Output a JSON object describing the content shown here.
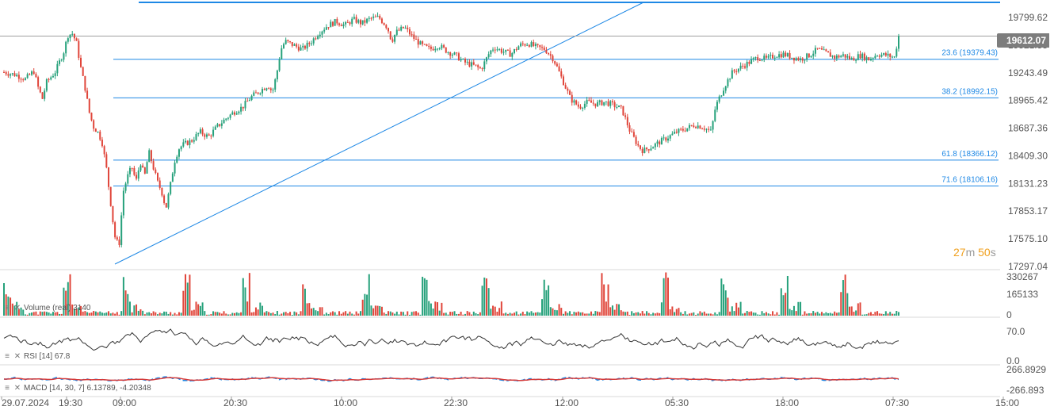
{
  "chart_data": {
    "type": "candlestick",
    "timer": {
      "minutes": "27",
      "m": "m",
      "seconds": "50",
      "s": "s"
    },
    "current_price": "19612.07",
    "y_axis_ticks": [
      "19799.62",
      "19521.55",
      "19243.49",
      "18965.42",
      "18687.36",
      "18409.30",
      "18131.23",
      "17853.17",
      "17575.10",
      "17297.04"
    ],
    "ylim": [
      17297.04,
      19799.62
    ],
    "x_axis_ticks": [
      "29.07.2024",
      "19:30",
      "09:00",
      "20:30",
      "10:00",
      "22:30",
      "12:00",
      "05:30",
      "18:00",
      "07:30",
      "15:00"
    ],
    "fibonacci_levels": [
      {
        "label": "23.6 (19379.43)",
        "value": 19379.43
      },
      {
        "label": "38.2 (18992.15)",
        "value": 18992.15
      },
      {
        "label": "61.8 (18366.12)",
        "value": 18366.12
      },
      {
        "label": "71.6 (18106.16)",
        "value": 18106.16
      }
    ],
    "close_path": [
      [
        0,
        19250
      ],
      [
        3,
        19220
      ],
      [
        5,
        19180
      ],
      [
        7,
        19260
      ],
      [
        8,
        19100
      ],
      [
        9,
        18980
      ],
      [
        10,
        19150
      ],
      [
        12,
        19250
      ],
      [
        14,
        19450
      ],
      [
        15,
        19620
      ],
      [
        16,
        19640
      ],
      [
        17,
        19550
      ],
      [
        18,
        19300
      ],
      [
        19,
        19100
      ],
      [
        20,
        18850
      ],
      [
        21,
        18700
      ],
      [
        22,
        18650
      ],
      [
        23,
        18550
      ],
      [
        24,
        18300
      ],
      [
        25,
        17950
      ],
      [
        26,
        17600
      ],
      [
        27,
        17500
      ],
      [
        28,
        18050
      ],
      [
        29,
        18200
      ],
      [
        30,
        18300
      ],
      [
        31,
        18150
      ],
      [
        32,
        18350
      ],
      [
        33,
        18200
      ],
      [
        34,
        18450
      ],
      [
        35,
        18300
      ],
      [
        36,
        18150
      ],
      [
        37,
        18050
      ],
      [
        38,
        17880
      ],
      [
        39,
        18100
      ],
      [
        40,
        18350
      ],
      [
        41,
        18480
      ],
      [
        42,
        18520
      ],
      [
        44,
        18560
      ],
      [
        46,
        18650
      ],
      [
        48,
        18600
      ],
      [
        50,
        18700
      ],
      [
        52,
        18780
      ],
      [
        54,
        18850
      ],
      [
        56,
        18900
      ],
      [
        58,
        19000
      ],
      [
        60,
        19060
      ],
      [
        62,
        19120
      ],
      [
        63,
        19050
      ],
      [
        64,
        19230
      ],
      [
        65,
        19480
      ],
      [
        66,
        19560
      ],
      [
        68,
        19520
      ],
      [
        70,
        19480
      ],
      [
        72,
        19550
      ],
      [
        74,
        19650
      ],
      [
        76,
        19720
      ],
      [
        78,
        19760
      ],
      [
        80,
        19720
      ],
      [
        82,
        19780
      ],
      [
        84,
        19740
      ],
      [
        86,
        19790
      ],
      [
        88,
        19800
      ],
      [
        90,
        19700
      ],
      [
        91,
        19560
      ],
      [
        92,
        19650
      ],
      [
        94,
        19700
      ],
      [
        96,
        19600
      ],
      [
        98,
        19520
      ],
      [
        100,
        19480
      ],
      [
        102,
        19520
      ],
      [
        104,
        19460
      ],
      [
        106,
        19420
      ],
      [
        108,
        19350
      ],
      [
        110,
        19320
      ],
      [
        112,
        19280
      ],
      [
        114,
        19450
      ],
      [
        115,
        19500
      ],
      [
        117,
        19460
      ],
      [
        119,
        19430
      ],
      [
        121,
        19520
      ],
      [
        123,
        19540
      ],
      [
        125,
        19500
      ],
      [
        127,
        19480
      ],
      [
        129,
        19380
      ],
      [
        131,
        19180
      ],
      [
        133,
        18980
      ],
      [
        135,
        18900
      ],
      [
        137,
        18950
      ],
      [
        139,
        18930
      ],
      [
        141,
        18950
      ],
      [
        143,
        18920
      ],
      [
        145,
        18880
      ],
      [
        147,
        18650
      ],
      [
        149,
        18500
      ],
      [
        150,
        18460
      ],
      [
        152,
        18500
      ],
      [
        154,
        18550
      ],
      [
        156,
        18600
      ],
      [
        158,
        18650
      ],
      [
        160,
        18680
      ],
      [
        162,
        18720
      ],
      [
        164,
        18700
      ],
      [
        166,
        18650
      ],
      [
        167,
        18900
      ],
      [
        169,
        19100
      ],
      [
        171,
        19250
      ],
      [
        173,
        19300
      ],
      [
        175,
        19350
      ],
      [
        177,
        19400
      ],
      [
        179,
        19380
      ],
      [
        181,
        19420
      ],
      [
        183,
        19430
      ],
      [
        185,
        19400
      ],
      [
        187,
        19380
      ],
      [
        189,
        19420
      ],
      [
        191,
        19480
      ],
      [
        193,
        19440
      ],
      [
        195,
        19400
      ],
      [
        197,
        19420
      ],
      [
        199,
        19380
      ],
      [
        201,
        19420
      ],
      [
        203,
        19380
      ],
      [
        205,
        19430
      ],
      [
        207,
        19420
      ],
      [
        209,
        19400
      ],
      [
        210,
        19612
      ]
    ],
    "volume_axis": [
      "330267",
      "165133",
      "0"
    ],
    "rsi_axis": [
      "70.0",
      "0.0"
    ],
    "macd_axis": [
      "266.8929",
      "-266.893"
    ]
  },
  "indicators": {
    "volume_label": "Volume (real) 3140",
    "rsi_label": "RSI [14] 67.8",
    "macd_label": "MACD [14, 30, 7] 6.13789, -4.20348"
  },
  "colors": {
    "up": "#26a17b",
    "down": "#e0453a",
    "line": "#1e88e5",
    "macd_line": "#1e88e5",
    "signal_line": "#d43b3b",
    "rsi_line": "#333333"
  }
}
